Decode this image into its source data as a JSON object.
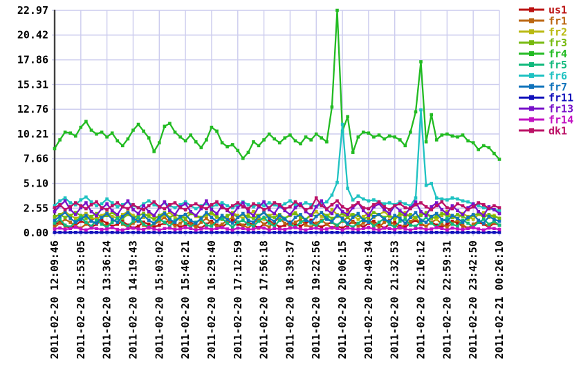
{
  "chart_data": {
    "type": "line",
    "title": "",
    "xlabel": "",
    "ylabel": "",
    "ylim": [
      0,
      22.97
    ],
    "grid": true,
    "legend_position": "right-top",
    "axis_color": "#404040",
    "grid_color": "#ccccee",
    "label_color": "#000000",
    "y_tick_labels": [
      "0.00",
      "2.55",
      "5.10",
      "7.66",
      "10.21",
      "12.76",
      "15.31",
      "17.86",
      "20.42",
      "22.97"
    ],
    "x_tick_labels": [
      "2011-02-20 12:09:46",
      "2011-02-20 12:53:05",
      "2011-02-20 13:36:24",
      "2011-02-20 14:19:43",
      "2011-02-20 15:03:02",
      "2011-02-20 15:46:21",
      "2011-02-20 16:29:40",
      "2011-02-20 17:12:59",
      "2011-02-20 17:56:18",
      "2011-02-20 18:39:37",
      "2011-02-20 19:22:56",
      "2011-02-20 20:06:15",
      "2011-02-20 20:49:34",
      "2011-02-20 21:32:53",
      "2011-02-20 22:16:12",
      "2011-02-20 22:59:31",
      "2011-02-20 23:42:50",
      "2011-02-21 00:26:10"
    ],
    "series": [
      {
        "name": "us1",
        "color": "#bb1111",
        "values": [
          0.9,
          1.1,
          0.7,
          0.5,
          0.8,
          1.2,
          1.0,
          0.6,
          0.9,
          1.3,
          1.0,
          0.7,
          0.9,
          1.2,
          0.8,
          0.5,
          0.7,
          1.1,
          0.9,
          0.6,
          0.8,
          1.0,
          1.3,
          0.9,
          0.6,
          0.8,
          1.1,
          0.7,
          0.5,
          0.9,
          1.2,
          0.8,
          0.6,
          1.0,
          1.3,
          0.9,
          0.7,
          1.1,
          0.8,
          0.5,
          0.9,
          1.2,
          1.0,
          0.6,
          0.8,
          1.1,
          0.9,
          0.7,
          1.0,
          1.3,
          0.8,
          0.6,
          0.9,
          1.1,
          0.7,
          0.5,
          0.8,
          1.2,
          0.9,
          0.6,
          1.0,
          1.2,
          0.8,
          0.5,
          0.9,
          1.1,
          0.7,
          0.6,
          1.0,
          1.3,
          0.9,
          0.7,
          1.1,
          0.8,
          0.6,
          0.9,
          1.2,
          1.0,
          0.7,
          0.5,
          0.8,
          1.1,
          0.9,
          0.6,
          1.0,
          0.8
        ]
      },
      {
        "name": "fr1",
        "color": "#bb6611",
        "values": [
          0.6,
          1.0,
          1.4,
          1.1,
          0.7,
          0.5,
          0.9,
          1.3,
          1.6,
          1.0,
          0.7,
          1.1,
          1.5,
          0.9,
          0.6,
          1.0,
          1.3,
          0.8,
          0.5,
          0.9,
          1.2,
          1.6,
          1.1,
          0.7,
          1.0,
          1.4,
          0.9,
          0.6,
          1.1,
          1.5,
          1.0,
          0.7,
          0.9,
          1.3,
          1.6,
          1.1,
          0.8,
          0.5,
          1.0,
          1.4,
          0.9,
          0.6,
          1.2,
          1.5,
          1.0,
          0.7,
          1.1,
          1.4,
          0.8,
          0.6,
          1.0,
          1.3,
          0.9,
          0.5,
          0.8,
          1.2,
          1.6,
          1.1,
          0.7,
          1.0,
          1.4,
          0.9,
          0.6,
          1.1,
          1.3,
          0.8,
          0.5,
          0.9,
          1.2,
          1.5,
          1.0,
          0.7,
          1.1,
          1.4,
          0.9,
          0.6,
          1.0,
          1.3,
          0.8,
          0.5,
          0.9,
          1.2,
          1.0,
          0.7,
          1.1,
          0.8
        ]
      },
      {
        "name": "fr2",
        "color": "#b9b910",
        "values": [
          1.6,
          1.9,
          2.2,
          1.8,
          1.5,
          1.7,
          2.0,
          1.6,
          1.4,
          1.8,
          2.1,
          1.7,
          1.5,
          1.9,
          2.2,
          1.8,
          1.4,
          1.6,
          2.0,
          1.7,
          1.5,
          1.8,
          2.1,
          1.6,
          1.4,
          1.9,
          2.2,
          1.7,
          1.5,
          1.8,
          2.0,
          1.6,
          1.4,
          1.7,
          2.1,
          1.8,
          1.5,
          1.9,
          2.2,
          1.6,
          1.4,
          1.8,
          2.0,
          1.7,
          1.5,
          1.9,
          2.1,
          1.6,
          1.4,
          1.8,
          2.2,
          1.7,
          1.5,
          2.4,
          1.9,
          1.6,
          2.1,
          1.8,
          1.4,
          1.7,
          2.0,
          1.6,
          1.9,
          2.2,
          1.7,
          1.4,
          1.8,
          2.1,
          1.6,
          1.5,
          1.9,
          2.0,
          1.7,
          1.4,
          1.8,
          2.2,
          1.6,
          1.5,
          2.0,
          1.7,
          1.4,
          1.9,
          2.1,
          1.6,
          1.8,
          1.5
        ]
      },
      {
        "name": "fr3",
        "color": "#76b90e",
        "values": [
          1.7,
          1.9,
          1.6,
          1.8,
          2.1,
          1.8,
          1.5,
          1.7,
          2.0,
          1.6,
          1.8,
          2.1,
          1.7,
          1.5,
          1.9,
          1.6,
          1.8,
          2.0,
          1.7,
          1.4,
          1.8,
          2.1,
          1.6,
          1.9,
          1.7,
          1.5,
          2.0,
          1.8,
          1.6,
          1.9,
          2.1,
          1.7,
          1.4,
          1.8,
          2.0,
          1.6,
          1.9,
          1.7,
          1.5,
          1.8,
          2.1,
          1.7,
          1.6,
          1.9,
          1.5,
          1.8,
          2.0,
          1.6,
          1.4,
          1.9,
          1.7,
          2.1,
          1.8,
          1.5,
          1.7,
          2.0,
          1.6,
          1.9,
          1.8,
          1.4,
          1.7,
          2.1,
          1.9,
          1.6,
          1.8,
          1.5,
          2.0,
          1.7,
          1.9,
          1.6,
          1.8,
          2.1,
          1.5,
          1.7,
          2.0,
          1.8,
          1.6,
          1.9,
          1.7,
          1.4,
          1.8,
          2.0,
          1.6,
          1.9,
          1.7,
          1.5
        ]
      },
      {
        "name": "fr4",
        "color": "#22bb22",
        "values": [
          8.7,
          9.6,
          10.4,
          10.3,
          10.0,
          10.9,
          11.5,
          10.6,
          10.2,
          10.4,
          9.9,
          10.3,
          9.5,
          9.0,
          9.7,
          10.6,
          11.2,
          10.5,
          9.8,
          8.4,
          9.3,
          11.0,
          11.3,
          10.4,
          9.9,
          9.5,
          10.1,
          9.4,
          8.8,
          9.6,
          10.9,
          10.5,
          9.3,
          8.9,
          9.1,
          8.5,
          7.7,
          8.3,
          9.4,
          9.0,
          9.6,
          10.2,
          9.7,
          9.3,
          9.8,
          10.1,
          9.5,
          9.2,
          9.9,
          9.6,
          10.2,
          9.8,
          9.4,
          13.0,
          22.97,
          10.5,
          12.0,
          8.3,
          9.9,
          10.4,
          10.3,
          9.9,
          10.1,
          9.7,
          10.0,
          9.9,
          9.6,
          9.0,
          10.4,
          12.5,
          17.66,
          9.4,
          12.2,
          9.6,
          10.1,
          10.2,
          10.0,
          9.9,
          10.1,
          9.5,
          9.3,
          8.6,
          9.0,
          8.8,
          8.2,
          7.6
        ]
      },
      {
        "name": "fr5",
        "color": "#11b97c",
        "values": [
          1.0,
          1.4,
          0.8,
          0.6,
          1.2,
          1.6,
          1.1,
          0.7,
          1.3,
          0.9,
          0.6,
          1.1,
          1.5,
          1.0,
          0.7,
          1.2,
          1.6,
          0.9,
          0.6,
          1.0,
          1.4,
          1.1,
          0.7,
          1.3,
          1.6,
          1.0,
          0.6,
          1.1,
          1.4,
          0.8,
          0.7,
          1.2,
          1.5,
          1.0,
          0.6,
          1.1,
          1.3,
          0.9,
          0.7,
          1.2,
          1.6,
          1.0,
          0.7,
          1.3,
          1.5,
          0.9,
          0.6,
          1.1,
          1.4,
          1.0,
          0.7,
          1.2,
          1.6,
          1.1,
          0.8,
          1.3,
          0.9,
          0.6,
          1.0,
          1.4,
          1.2,
          0.7,
          1.1,
          1.5,
          0.9,
          0.6,
          1.2,
          1.4,
          0.8,
          0.7,
          1.1,
          1.6,
          1.0,
          0.6,
          1.2,
          1.5,
          0.9,
          0.7,
          1.3,
          1.0,
          0.6,
          1.1,
          1.4,
          0.9,
          1.2,
          0.8
        ]
      },
      {
        "name": "fr6",
        "color": "#1fc2c2",
        "values": [
          2.8,
          3.3,
          3.6,
          3.1,
          2.9,
          3.4,
          3.7,
          3.2,
          2.8,
          3.0,
          3.5,
          3.1,
          2.7,
          2.9,
          3.2,
          2.8,
          2.6,
          3.0,
          3.3,
          2.9,
          2.7,
          3.1,
          2.8,
          2.6,
          2.9,
          3.2,
          2.8,
          2.5,
          2.8,
          3.0,
          2.7,
          2.9,
          3.1,
          2.8,
          2.6,
          2.9,
          3.2,
          2.9,
          2.7,
          3.0,
          2.8,
          3.1,
          2.9,
          2.7,
          3.0,
          3.3,
          2.9,
          2.8,
          3.1,
          2.9,
          2.7,
          3.0,
          3.2,
          3.9,
          5.2,
          11.2,
          4.6,
          3.4,
          3.8,
          3.5,
          3.3,
          3.4,
          3.2,
          3.0,
          3.1,
          2.9,
          3.2,
          3.0,
          2.8,
          3.6,
          12.7,
          4.9,
          5.1,
          3.6,
          3.5,
          3.4,
          3.6,
          3.5,
          3.3,
          3.2,
          3.0,
          2.8,
          2.6,
          2.5,
          2.4,
          2.3
        ]
      },
      {
        "name": "fr7",
        "color": "#1173bb",
        "values": [
          1.3,
          1.7,
          2.1,
          1.5,
          1.1,
          1.4,
          1.8,
          1.2,
          1.0,
          1.6,
          2.0,
          1.4,
          1.1,
          1.7,
          2.1,
          1.5,
          1.2,
          1.8,
          1.3,
          1.0,
          1.6,
          2.0,
          1.4,
          1.1,
          1.7,
          1.9,
          1.3,
          1.0,
          1.5,
          2.1,
          1.6,
          1.2,
          1.8,
          1.4,
          1.0,
          1.6,
          2.0,
          1.3,
          1.1,
          1.7,
          2.1,
          1.5,
          1.2,
          1.8,
          1.4,
          1.0,
          1.6,
          1.9,
          1.3,
          1.1,
          1.7,
          2.1,
          1.4,
          1.2,
          1.8,
          1.5,
          1.0,
          1.6,
          2.0,
          1.3,
          1.1,
          1.7,
          1.9,
          1.4,
          1.2,
          1.8,
          1.5,
          1.0,
          1.6,
          2.1,
          1.3,
          1.1,
          1.7,
          2.0,
          1.4,
          1.2,
          1.8,
          1.5,
          1.1,
          1.6,
          1.9,
          1.3,
          1.0,
          1.7,
          1.4,
          1.2
        ]
      },
      {
        "name": "fr11",
        "color": "#1111bb",
        "values": [
          0.05,
          0.05,
          0.05,
          0.05,
          0.05,
          0.05,
          0.05,
          0.05,
          0.05,
          0.05,
          0.05,
          0.05,
          0.05,
          0.05,
          0.05,
          0.05,
          0.05,
          0.05,
          0.05,
          0.05,
          0.05,
          0.05,
          0.05,
          0.05,
          0.05,
          0.05,
          0.05,
          0.05,
          0.05,
          0.05,
          0.05,
          0.05,
          0.05,
          0.05,
          0.05,
          0.05,
          0.05,
          0.05,
          0.05,
          0.05,
          0.05,
          0.05,
          0.05,
          0.05,
          0.05,
          0.05,
          0.05,
          0.05,
          0.05,
          0.05,
          0.05,
          0.05,
          0.05,
          0.05,
          0.05,
          0.05,
          0.05,
          0.05,
          0.05,
          0.05,
          0.05,
          0.05,
          0.05,
          0.05,
          0.05,
          0.05,
          0.05,
          0.05,
          0.05,
          0.05,
          0.05,
          0.05,
          0.05,
          0.05,
          0.05,
          0.05,
          0.05,
          0.05,
          0.05,
          0.05,
          0.05,
          0.05,
          0.05,
          0.05,
          0.05,
          0.05
        ]
      },
      {
        "name": "fr13",
        "color": "#7711c9",
        "values": [
          2.2,
          2.8,
          3.3,
          2.4,
          1.9,
          2.6,
          3.1,
          2.2,
          1.8,
          2.5,
          3.0,
          2.3,
          1.9,
          2.7,
          3.3,
          2.4,
          2.0,
          2.8,
          2.2,
          1.8,
          2.6,
          3.2,
          2.3,
          1.9,
          2.7,
          3.0,
          2.2,
          1.8,
          2.5,
          3.3,
          2.4,
          2.0,
          2.8,
          2.3,
          1.9,
          2.6,
          3.1,
          2.2,
          1.8,
          2.7,
          3.2,
          2.4,
          2.0,
          2.8,
          2.3,
          1.9,
          2.6,
          3.0,
          2.2,
          1.8,
          2.7,
          3.3,
          2.4,
          2.0,
          2.8,
          2.2,
          1.9,
          2.6,
          3.1,
          2.3,
          1.8,
          2.7,
          3.0,
          2.4,
          2.0,
          2.8,
          2.3,
          1.9,
          2.6,
          3.2,
          2.2,
          1.8,
          2.7,
          3.1,
          2.4,
          2.0,
          2.8,
          2.3,
          1.9,
          2.6,
          3.0,
          2.2,
          1.8,
          2.7,
          2.4,
          2.0
        ]
      },
      {
        "name": "fr14",
        "color": "#c211c2",
        "values": [
          0.4,
          0.5,
          0.35,
          0.45,
          0.6,
          0.4,
          0.3,
          0.5,
          0.45,
          0.35,
          0.4,
          0.55,
          0.35,
          0.3,
          0.45,
          0.5,
          0.4,
          0.35,
          0.55,
          0.4,
          0.3,
          0.45,
          0.5,
          0.35,
          0.4,
          0.55,
          0.45,
          0.3,
          0.4,
          0.5,
          0.35,
          0.45,
          0.55,
          0.4,
          0.3,
          0.5,
          0.45,
          0.35,
          0.4,
          0.55,
          0.5,
          0.3,
          0.45,
          0.4,
          0.35,
          0.5,
          0.55,
          0.4,
          0.3,
          0.45,
          0.5,
          0.35,
          0.4,
          0.55,
          0.45,
          0.3,
          0.5,
          0.4,
          0.35,
          0.45,
          0.55,
          0.4,
          0.3,
          0.5,
          0.45,
          0.35,
          0.55,
          0.4,
          0.3,
          0.45,
          0.5,
          0.35,
          0.4,
          0.55,
          0.45,
          0.3,
          0.5,
          0.4,
          0.35,
          0.45,
          0.55,
          0.4,
          0.3,
          0.5,
          0.45,
          0.35
        ]
      },
      {
        "name": "dk1",
        "color": "#bb1166",
        "values": [
          2.6,
          2.9,
          2.4,
          2.7,
          3.1,
          2.8,
          2.5,
          2.9,
          3.2,
          2.6,
          2.4,
          2.8,
          3.1,
          2.7,
          2.5,
          2.9,
          2.6,
          2.4,
          2.8,
          3.2,
          2.7,
          2.5,
          2.9,
          3.1,
          2.6,
          2.4,
          2.8,
          3.0,
          2.7,
          2.5,
          2.9,
          3.2,
          2.6,
          2.4,
          2.8,
          3.1,
          2.7,
          2.5,
          3.0,
          2.8,
          2.4,
          2.6,
          3.1,
          2.9,
          2.5,
          2.7,
          3.2,
          2.8,
          2.4,
          2.6,
          3.6,
          2.8,
          2.5,
          2.9,
          3.3,
          2.7,
          2.4,
          2.8,
          3.1,
          2.6,
          2.5,
          2.9,
          3.2,
          2.7,
          2.4,
          2.8,
          3.0,
          2.6,
          2.5,
          2.9,
          3.1,
          2.7,
          2.4,
          2.8,
          3.2,
          2.6,
          2.5,
          3.0,
          2.8,
          2.4,
          2.7,
          3.1,
          2.9,
          2.5,
          2.8,
          2.6
        ]
      }
    ]
  }
}
